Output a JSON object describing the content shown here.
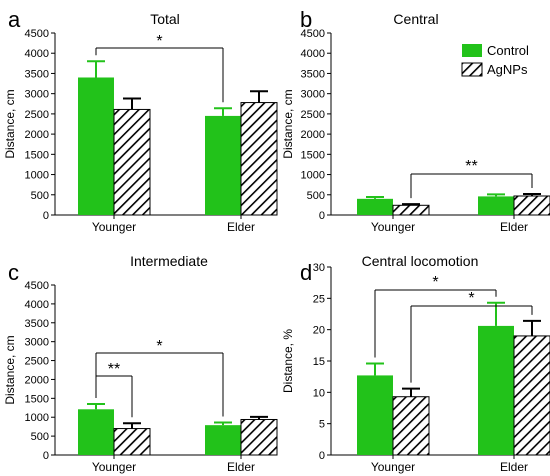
{
  "colors": {
    "control": "#22c21a",
    "axis": "#000000",
    "hatch": "#000000"
  },
  "legend": {
    "placement": "top-right of panel b",
    "items": [
      {
        "label": "Control",
        "style": "solid"
      },
      {
        "label": "AgNPs",
        "style": "hatched"
      }
    ]
  },
  "chart_data": [
    {
      "type": "bar",
      "panel_letter": "a",
      "title": "Total",
      "ylabel": "Distance, cm",
      "xlabel": "",
      "ylim": [
        0,
        4500
      ],
      "yticks": [
        0,
        500,
        1000,
        1500,
        2000,
        2500,
        3000,
        3500,
        4000,
        4500
      ],
      "categories": [
        "Younger",
        "Elder"
      ],
      "series": [
        {
          "name": "Control",
          "values": [
            3400,
            2450
          ],
          "errors": [
            400,
            190
          ]
        },
        {
          "name": "AgNPs",
          "values": [
            2610,
            2780
          ],
          "errors": [
            270,
            280
          ]
        }
      ],
      "significance": [
        {
          "label": "*",
          "from": "Younger:Control",
          "to": "Elder:Control"
        }
      ]
    },
    {
      "type": "bar",
      "panel_letter": "b",
      "title": "Central",
      "ylabel": "Distance, cm",
      "xlabel": "",
      "ylim": [
        0,
        4500
      ],
      "yticks": [
        0,
        500,
        1000,
        1500,
        2000,
        2500,
        3000,
        3500,
        4000,
        4500
      ],
      "categories": [
        "Younger",
        "Elder"
      ],
      "series": [
        {
          "name": "Control",
          "values": [
            400,
            460
          ],
          "errors": [
            45,
            50
          ]
        },
        {
          "name": "AgNPs",
          "values": [
            240,
            470
          ],
          "errors": [
            30,
            50
          ]
        }
      ],
      "significance": [
        {
          "label": "**",
          "from": "Younger:AgNPs",
          "to": "Elder:AgNPs"
        }
      ]
    },
    {
      "type": "bar",
      "panel_letter": "c",
      "title": "Intermediate",
      "ylabel": "Distance, cm",
      "xlabel": "",
      "ylim": [
        0,
        4500
      ],
      "yticks": [
        0,
        500,
        1000,
        1500,
        2000,
        2500,
        3000,
        3500,
        4000,
        4500
      ],
      "categories": [
        "Younger",
        "Elder"
      ],
      "series": [
        {
          "name": "Control",
          "values": [
            1210,
            790
          ],
          "errors": [
            140,
            70
          ]
        },
        {
          "name": "AgNPs",
          "values": [
            700,
            940
          ],
          "errors": [
            140,
            70
          ]
        }
      ],
      "significance": [
        {
          "label": "**",
          "from": "Younger:Control",
          "to": "Younger:AgNPs"
        },
        {
          "label": "*",
          "from": "Younger:Control",
          "to": "Elder:Control"
        }
      ]
    },
    {
      "type": "bar",
      "panel_letter": "d",
      "title": "Central locomotion",
      "ylabel": "Distance, %",
      "xlabel": "",
      "ylim": [
        0,
        30
      ],
      "yticks": [
        0,
        5,
        10,
        15,
        20,
        25,
        30
      ],
      "categories": [
        "Younger",
        "Elder"
      ],
      "series": [
        {
          "name": "Control",
          "values": [
            12.7,
            20.6
          ],
          "errors": [
            1.9,
            3.7
          ]
        },
        {
          "name": "AgNPs",
          "values": [
            9.3,
            19.0
          ],
          "errors": [
            1.3,
            2.4
          ]
        }
      ],
      "significance": [
        {
          "label": "*",
          "from": "Younger:Control",
          "to": "Elder:Control"
        },
        {
          "label": "*",
          "from": "Younger:AgNPs",
          "to": "Elder:AgNPs"
        }
      ]
    }
  ]
}
